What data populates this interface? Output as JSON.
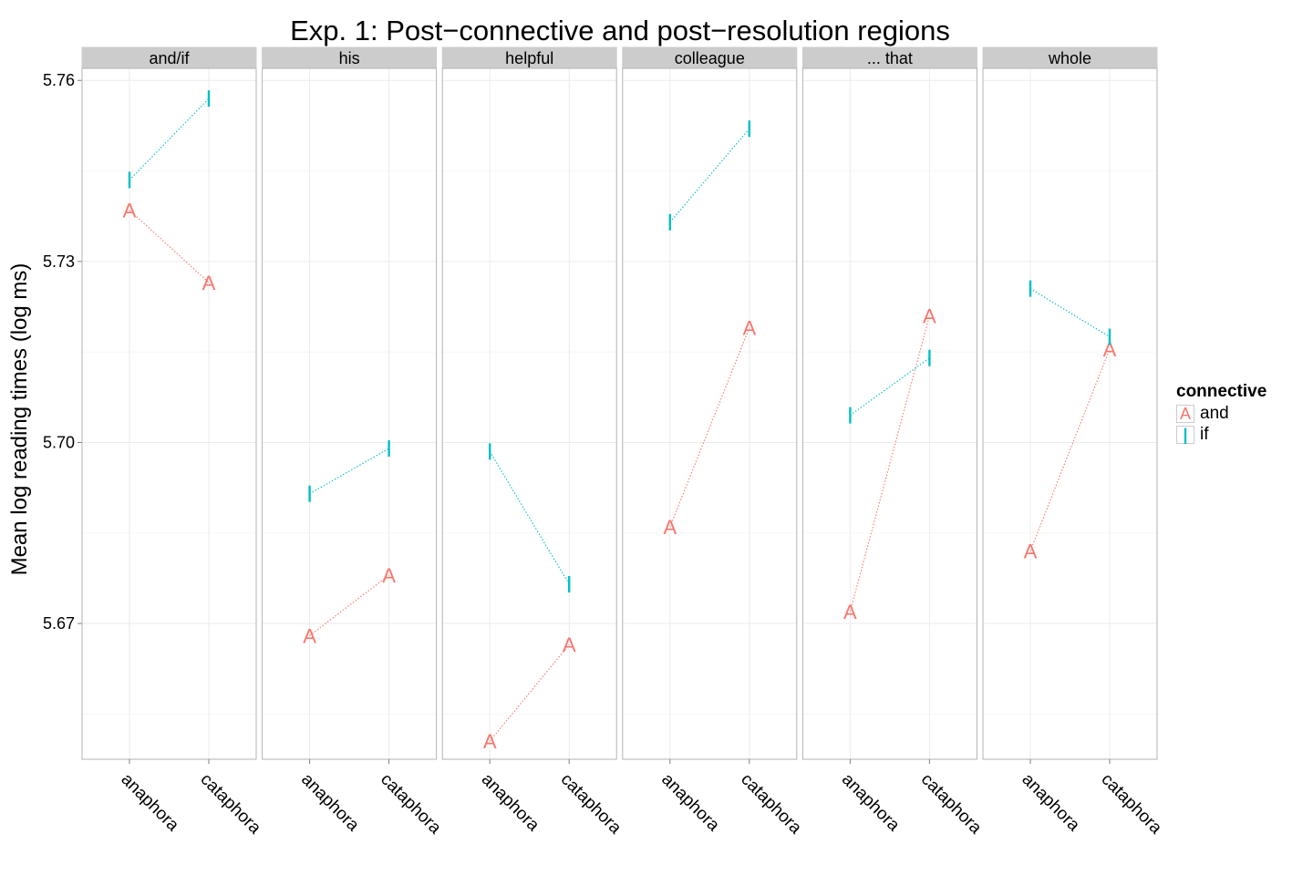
{
  "chart_data": {
    "type": "line",
    "title": "Exp. 1: Post−connective and post−resolution regions",
    "xlabel": "",
    "ylabel": "Mean log reading times (log ms)",
    "ylim": [
      5.6475,
      5.762
    ],
    "y_ticks": [
      "5.67",
      "5.70",
      "5.73",
      "5.76"
    ],
    "y_tick_values": [
      5.67,
      5.7,
      5.73,
      5.76
    ],
    "categories": [
      "anaphora",
      "cataphora"
    ],
    "facets": [
      {
        "label": "and/if",
        "series": [
          {
            "name": "and",
            "values": [
              5.7385,
              5.7265
            ]
          },
          {
            "name": "if",
            "values": [
              5.7435,
              5.757
            ]
          }
        ]
      },
      {
        "label": "his",
        "series": [
          {
            "name": "and",
            "values": [
              5.668,
              5.678
            ]
          },
          {
            "name": "if",
            "values": [
              5.6915,
              5.699
            ]
          }
        ]
      },
      {
        "label": "helpful",
        "series": [
          {
            "name": "and",
            "values": [
              5.6505,
              5.6665
            ]
          },
          {
            "name": "if",
            "values": [
              5.6985,
              5.6765
            ]
          }
        ]
      },
      {
        "label": "colleague",
        "series": [
          {
            "name": "and",
            "values": [
              5.686,
              5.719
            ]
          },
          {
            "name": "if",
            "values": [
              5.7365,
              5.752
            ]
          }
        ]
      },
      {
        "label": "... that",
        "series": [
          {
            "name": "and",
            "values": [
              5.672,
              5.721
            ]
          },
          {
            "name": "if",
            "values": [
              5.7045,
              5.714
            ]
          }
        ]
      },
      {
        "label": "whole",
        "series": [
          {
            "name": "and",
            "values": [
              5.682,
              5.7155
            ]
          },
          {
            "name": "if",
            "values": [
              5.7255,
              5.7175
            ]
          }
        ]
      }
    ],
    "legend": {
      "title": "connective",
      "position": "right",
      "items": [
        {
          "label": "and",
          "symbol": "A",
          "color": "#F8766D"
        },
        {
          "label": "if",
          "symbol": "|",
          "color": "#00BFC4"
        }
      ]
    },
    "series_colors": {
      "and": "#F8766D",
      "if": "#00BFC4"
    },
    "series_symbols": {
      "and": "A",
      "if": "|"
    },
    "panel_background": "#ffffff",
    "strip_background": "#cccccc",
    "grid": true
  }
}
